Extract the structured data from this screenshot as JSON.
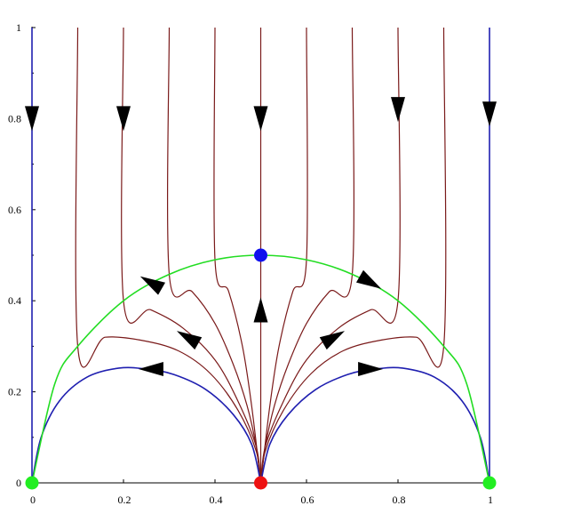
{
  "chart_data": {
    "type": "line",
    "title": "",
    "xlabel": "",
    "ylabel": "",
    "xlim": [
      0,
      1
    ],
    "ylim": [
      0,
      1
    ],
    "x_ticks": [
      {
        "value": 0,
        "label": "0"
      },
      {
        "value": 0.2,
        "label": "0.2"
      },
      {
        "value": 0.4,
        "label": "0.4"
      },
      {
        "value": 0.6,
        "label": "0.6"
      },
      {
        "value": 0.8,
        "label": "0.8"
      },
      {
        "value": 1,
        "label": "1"
      }
    ],
    "y_ticks": [
      {
        "value": 0,
        "label": "0"
      },
      {
        "value": 0.2,
        "label": "0.2"
      },
      {
        "value": 0.4,
        "label": "0.4"
      },
      {
        "value": 0.6,
        "label": "0.6"
      },
      {
        "value": 0.8,
        "label": "0.8"
      },
      {
        "value": 1,
        "label": "1"
      }
    ],
    "grid": false,
    "colors": {
      "separatrix": "#1f1fb0",
      "trajectory": "#7a1a1a",
      "boundary": "#22dd22",
      "fixed_point_source": "#ee1111",
      "fixed_point_saddle": "#1111ee",
      "fixed_point_corner": "#22ee22"
    },
    "series": [
      {
        "kind": "boundary",
        "points": [
          [
            0,
            0
          ],
          [
            0.05,
            0.218
          ],
          [
            0.1,
            0.3
          ],
          [
            0.2,
            0.4
          ],
          [
            0.3,
            0.458
          ],
          [
            0.4,
            0.49
          ],
          [
            0.5,
            0.5
          ],
          [
            0.6,
            0.49
          ],
          [
            0.7,
            0.458
          ],
          [
            0.8,
            0.4
          ],
          [
            0.9,
            0.3
          ],
          [
            0.95,
            0.218
          ],
          [
            1,
            0
          ]
        ]
      },
      {
        "kind": "separatrix",
        "points": [
          [
            0,
            0
          ],
          [
            0,
            1
          ]
        ]
      },
      {
        "kind": "separatrix",
        "points": [
          [
            1,
            0
          ],
          [
            1,
            1
          ]
        ]
      },
      {
        "kind": "separatrix",
        "points": [
          [
            0,
            0
          ],
          [
            0.02,
            0.1
          ],
          [
            0.06,
            0.18
          ],
          [
            0.12,
            0.232
          ],
          [
            0.19,
            0.252
          ],
          [
            0.25,
            0.25
          ],
          [
            0.31,
            0.238
          ],
          [
            0.38,
            0.205
          ],
          [
            0.44,
            0.15
          ],
          [
            0.48,
            0.085
          ],
          [
            0.5,
            0
          ]
        ]
      },
      {
        "kind": "separatrix",
        "points": [
          [
            1,
            0
          ],
          [
            0.98,
            0.1
          ],
          [
            0.94,
            0.18
          ],
          [
            0.88,
            0.232
          ],
          [
            0.81,
            0.252
          ],
          [
            0.75,
            0.25
          ],
          [
            0.69,
            0.238
          ],
          [
            0.62,
            0.205
          ],
          [
            0.56,
            0.15
          ],
          [
            0.52,
            0.085
          ],
          [
            0.5,
            0
          ]
        ]
      },
      {
        "kind": "trajectory",
        "points": [
          [
            0.1,
            1
          ],
          [
            0.1,
            0.3
          ],
          [
            0.16,
            0.32
          ],
          [
            0.24,
            0.313
          ],
          [
            0.32,
            0.29
          ],
          [
            0.39,
            0.24
          ],
          [
            0.45,
            0.16
          ],
          [
            0.49,
            0.07
          ],
          [
            0.5,
            0
          ]
        ]
      },
      {
        "kind": "trajectory",
        "points": [
          [
            0.2,
            1
          ],
          [
            0.2,
            0.4
          ],
          [
            0.26,
            0.38
          ],
          [
            0.33,
            0.34
          ],
          [
            0.4,
            0.27
          ],
          [
            0.45,
            0.18
          ],
          [
            0.49,
            0.08
          ],
          [
            0.5,
            0
          ]
        ]
      },
      {
        "kind": "trajectory",
        "points": [
          [
            0.3,
            1
          ],
          [
            0.3,
            0.458
          ],
          [
            0.35,
            0.42
          ],
          [
            0.4,
            0.35
          ],
          [
            0.44,
            0.26
          ],
          [
            0.47,
            0.17
          ],
          [
            0.49,
            0.08
          ],
          [
            0.5,
            0
          ]
        ]
      },
      {
        "kind": "trajectory",
        "points": [
          [
            0.4,
            1
          ],
          [
            0.4,
            0.49
          ],
          [
            0.43,
            0.42
          ],
          [
            0.46,
            0.3
          ],
          [
            0.48,
            0.17
          ],
          [
            0.5,
            0
          ]
        ]
      },
      {
        "kind": "trajectory",
        "points": [
          [
            0.5,
            1
          ],
          [
            0.5,
            0
          ]
        ]
      },
      {
        "kind": "trajectory",
        "points": [
          [
            0.6,
            1
          ],
          [
            0.6,
            0.49
          ],
          [
            0.57,
            0.42
          ],
          [
            0.54,
            0.3
          ],
          [
            0.52,
            0.17
          ],
          [
            0.5,
            0
          ]
        ]
      },
      {
        "kind": "trajectory",
        "points": [
          [
            0.7,
            1
          ],
          [
            0.7,
            0.458
          ],
          [
            0.65,
            0.42
          ],
          [
            0.6,
            0.35
          ],
          [
            0.56,
            0.26
          ],
          [
            0.53,
            0.17
          ],
          [
            0.51,
            0.08
          ],
          [
            0.5,
            0
          ]
        ]
      },
      {
        "kind": "trajectory",
        "points": [
          [
            0.8,
            1
          ],
          [
            0.8,
            0.4
          ],
          [
            0.74,
            0.38
          ],
          [
            0.67,
            0.34
          ],
          [
            0.6,
            0.27
          ],
          [
            0.55,
            0.18
          ],
          [
            0.51,
            0.08
          ],
          [
            0.5,
            0
          ]
        ]
      },
      {
        "kind": "trajectory",
        "points": [
          [
            0.9,
            1
          ],
          [
            0.9,
            0.3
          ],
          [
            0.84,
            0.32
          ],
          [
            0.76,
            0.313
          ],
          [
            0.68,
            0.29
          ],
          [
            0.61,
            0.24
          ],
          [
            0.55,
            0.16
          ],
          [
            0.51,
            0.07
          ],
          [
            0.5,
            0
          ]
        ]
      }
    ],
    "arrows": [
      {
        "x": 0,
        "y": 0.8,
        "direction": "down"
      },
      {
        "x": 0.2,
        "y": 0.8,
        "direction": "down"
      },
      {
        "x": 0.5,
        "y": 0.8,
        "direction": "down"
      },
      {
        "x": 0.8,
        "y": 0.82,
        "direction": "down"
      },
      {
        "x": 1,
        "y": 0.81,
        "direction": "down"
      },
      {
        "x": 0.5,
        "y": 0.38,
        "direction": "up"
      },
      {
        "x": 0.26,
        "y": 0.25,
        "direction": "left"
      },
      {
        "x": 0.74,
        "y": 0.25,
        "direction": "right"
      },
      {
        "x": 0.26,
        "y": 0.44,
        "direction": "up-left"
      },
      {
        "x": 0.74,
        "y": 0.44,
        "direction": "down-right"
      },
      {
        "x": 0.34,
        "y": 0.32,
        "direction": "up-left"
      },
      {
        "x": 0.66,
        "y": 0.32,
        "direction": "up-right"
      }
    ],
    "points": [
      {
        "x": 0,
        "y": 0,
        "kind": "corner"
      },
      {
        "x": 1,
        "y": 0,
        "kind": "corner"
      },
      {
        "x": 0.5,
        "y": 0,
        "kind": "source"
      },
      {
        "x": 0.5,
        "y": 0.5,
        "kind": "saddle"
      }
    ]
  }
}
